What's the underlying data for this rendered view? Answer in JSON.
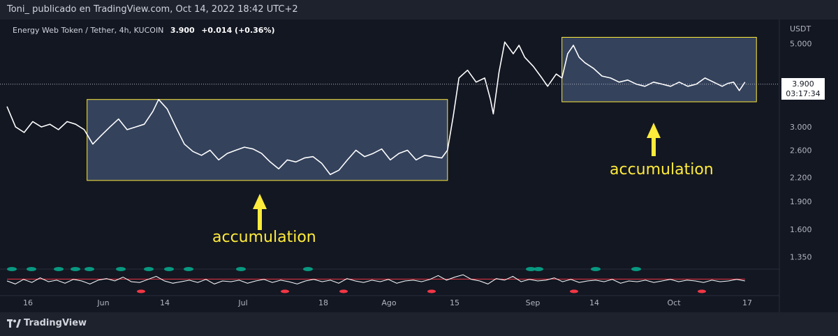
{
  "header": {
    "attribution": "Toni_ publicado en TradingView.com, Oct 14, 2022 18:42 UTC+2"
  },
  "legend": {
    "symbol": "Energy Web Token / Tether, 4h, KUCOIN",
    "last": "3.900",
    "change": "+0.014 (+0.36%)"
  },
  "footer": {
    "brand": "TradingView"
  },
  "colors": {
    "background": "#131722",
    "line": "#ffffff",
    "box_fill": "#3b4a66",
    "box_border": "#ffeb3b",
    "annotation": "#ffeb3b",
    "osc_line": "#ffffff",
    "osc_level_red": "#f23645",
    "osc_green": "#089981"
  },
  "chart_data": {
    "type": "line",
    "title": "Energy Web Token / Tether, 4h, KUCOIN",
    "unit": "USDT",
    "scale": "log",
    "y_ticks": [
      "5.000",
      "3.000",
      "2.600",
      "2.200",
      "1.900",
      "1.600",
      "1.350"
    ],
    "y_tick_values": [
      5.0,
      3.0,
      2.6,
      2.2,
      1.9,
      1.6,
      1.35
    ],
    "x_ticks": [
      "16",
      "Jun",
      "14",
      "Jul",
      "18",
      "Ago",
      "15",
      "Sep",
      "14",
      "Oct",
      "17"
    ],
    "last_price": {
      "value": 3.9,
      "label": "3.900",
      "countdown": "03:17:34"
    },
    "series": [
      {
        "values": [
          [
            0.0,
            3.4
          ],
          [
            1.5,
            3.0
          ],
          [
            3.0,
            2.9
          ],
          [
            4.5,
            3.1
          ],
          [
            6.0,
            3.0
          ],
          [
            7.5,
            3.05
          ],
          [
            9.0,
            2.95
          ],
          [
            10.5,
            3.1
          ],
          [
            12.0,
            3.05
          ],
          [
            13.5,
            2.95
          ],
          [
            15.0,
            2.7
          ],
          [
            16.5,
            2.85
          ],
          [
            18.0,
            3.0
          ],
          [
            19.5,
            3.15
          ],
          [
            21.0,
            2.95
          ],
          [
            22.5,
            3.0
          ],
          [
            24.0,
            3.05
          ],
          [
            25.5,
            3.3
          ],
          [
            26.5,
            3.55
          ],
          [
            28.0,
            3.35
          ],
          [
            29.5,
            3.0
          ],
          [
            31.0,
            2.7
          ],
          [
            32.5,
            2.58
          ],
          [
            34.0,
            2.52
          ],
          [
            35.5,
            2.6
          ],
          [
            37.0,
            2.45
          ],
          [
            38.5,
            2.55
          ],
          [
            40.0,
            2.6
          ],
          [
            41.5,
            2.65
          ],
          [
            43.0,
            2.62
          ],
          [
            44.5,
            2.55
          ],
          [
            46.0,
            2.42
          ],
          [
            47.5,
            2.32
          ],
          [
            49.0,
            2.45
          ],
          [
            50.5,
            2.42
          ],
          [
            52.0,
            2.48
          ],
          [
            53.5,
            2.5
          ],
          [
            55.0,
            2.4
          ],
          [
            56.5,
            2.24
          ],
          [
            58.0,
            2.3
          ],
          [
            59.5,
            2.45
          ],
          [
            61.0,
            2.6
          ],
          [
            62.5,
            2.5
          ],
          [
            64.0,
            2.55
          ],
          [
            65.5,
            2.62
          ],
          [
            67.0,
            2.45
          ],
          [
            68.5,
            2.55
          ],
          [
            70.0,
            2.6
          ],
          [
            71.5,
            2.45
          ],
          [
            73.0,
            2.52
          ],
          [
            74.5,
            2.5
          ],
          [
            76.0,
            2.48
          ],
          [
            77.0,
            2.6
          ],
          [
            78.0,
            3.2
          ],
          [
            79.0,
            4.05
          ],
          [
            80.5,
            4.25
          ],
          [
            82.0,
            3.95
          ],
          [
            83.5,
            4.05
          ],
          [
            84.5,
            3.55
          ],
          [
            85.0,
            3.25
          ],
          [
            86.0,
            4.2
          ],
          [
            87.0,
            5.05
          ],
          [
            88.5,
            4.7
          ],
          [
            89.5,
            4.95
          ],
          [
            90.5,
            4.6
          ],
          [
            92.0,
            4.35
          ],
          [
            93.5,
            4.05
          ],
          [
            94.5,
            3.85
          ],
          [
            96.0,
            4.15
          ],
          [
            97.0,
            4.05
          ],
          [
            98.0,
            4.7
          ],
          [
            99.0,
            4.95
          ],
          [
            100.0,
            4.6
          ],
          [
            101.0,
            4.45
          ],
          [
            102.5,
            4.3
          ],
          [
            104.0,
            4.1
          ],
          [
            105.5,
            4.05
          ],
          [
            107.0,
            3.95
          ],
          [
            108.5,
            4.0
          ],
          [
            110.0,
            3.9
          ],
          [
            111.5,
            3.85
          ],
          [
            113.0,
            3.95
          ],
          [
            114.5,
            3.9
          ],
          [
            116.0,
            3.85
          ],
          [
            117.5,
            3.95
          ],
          [
            119.0,
            3.85
          ],
          [
            120.5,
            3.9
          ],
          [
            122.0,
            4.05
          ],
          [
            123.5,
            3.95
          ],
          [
            125.0,
            3.85
          ],
          [
            126.0,
            3.92
          ],
          [
            127.0,
            3.95
          ],
          [
            128.0,
            3.75
          ],
          [
            129.0,
            3.95
          ]
        ]
      }
    ],
    "accumulation_zones": [
      {
        "x_start": 14.0,
        "x_end": 77.0,
        "y_low": 2.16,
        "y_high": 3.55
      },
      {
        "x_start": 97.0,
        "x_end": 131.0,
        "y_low": 3.5,
        "y_high": 5.2
      }
    ],
    "annotations": [
      {
        "text": "accumulation",
        "zone": 0
      },
      {
        "text": "accumulation",
        "zone": 1
      }
    ],
    "oscillator": {
      "values": [
        0.5,
        0.3,
        0.6,
        0.4,
        0.7,
        0.45,
        0.55,
        0.35,
        0.6,
        0.5,
        0.3,
        0.55,
        0.65,
        0.5,
        0.75,
        0.45,
        0.4,
        0.6,
        0.8,
        0.5,
        0.35,
        0.45,
        0.55,
        0.4,
        0.6,
        0.3,
        0.5,
        0.45,
        0.55,
        0.35,
        0.5,
        0.6,
        0.4,
        0.55,
        0.45,
        0.3,
        0.5,
        0.6,
        0.45,
        0.55,
        0.35,
        0.65,
        0.5,
        0.4,
        0.55,
        0.45,
        0.6,
        0.35,
        0.5,
        0.55,
        0.45,
        0.6,
        0.85,
        0.55,
        0.75,
        0.9,
        0.6,
        0.5,
        0.3,
        0.65,
        0.55,
        0.8,
        0.45,
        0.6,
        0.5,
        0.55,
        0.7,
        0.45,
        0.6,
        0.4,
        0.5,
        0.55,
        0.45,
        0.6,
        0.35,
        0.5,
        0.45,
        0.55,
        0.4,
        0.5,
        0.6,
        0.45,
        0.55,
        0.5,
        0.4,
        0.55,
        0.45,
        0.5,
        0.6,
        0.5
      ],
      "level": 0.62
    }
  }
}
